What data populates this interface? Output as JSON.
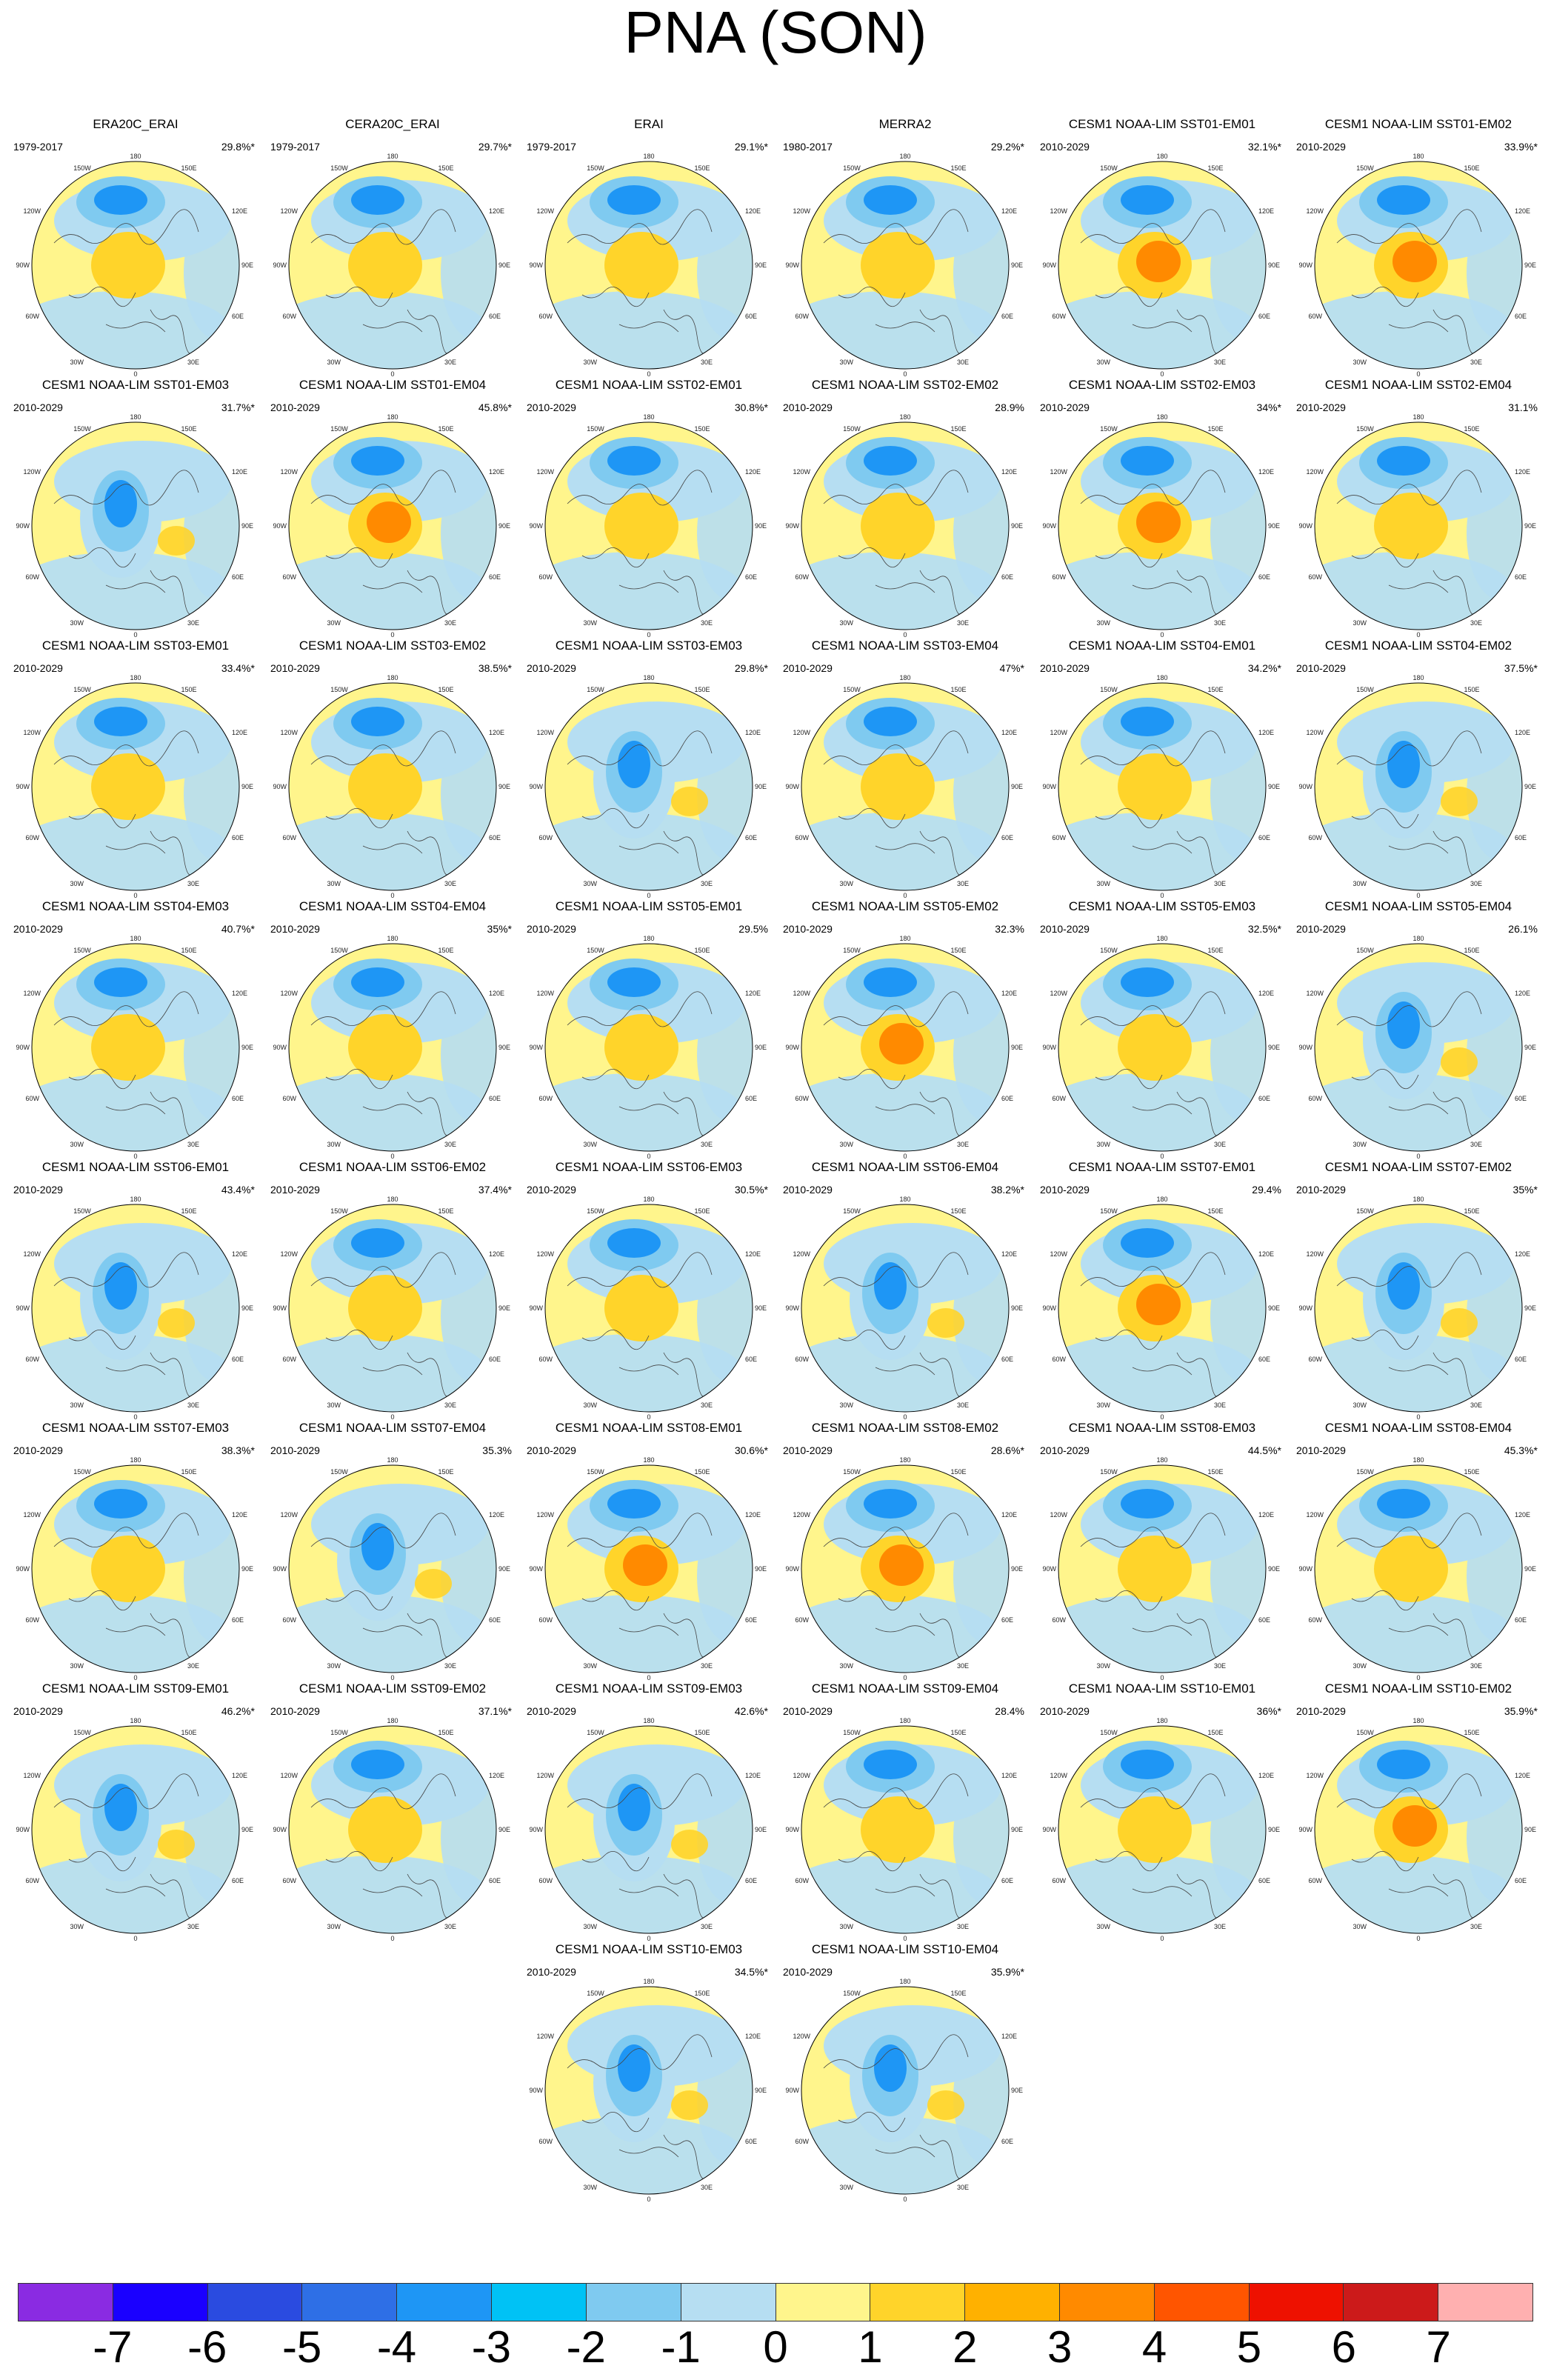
{
  "title": "PNA (SON)",
  "panels": [
    {
      "title": "ERA20C_ERAI",
      "period": "1979-2017",
      "percent": "29.8%*",
      "centre": "warm"
    },
    {
      "title": "CERA20C_ERAI",
      "period": "1979-2017",
      "percent": "29.7%*",
      "centre": "warm"
    },
    {
      "title": "ERAI",
      "period": "1979-2017",
      "percent": "29.1%*",
      "centre": "warm"
    },
    {
      "title": "MERRA2",
      "period": "1980-2017",
      "percent": "29.2%*",
      "centre": "warm"
    },
    {
      "title": "CESM1 NOAA-LIM SST01-EM01",
      "period": "2010-2029",
      "percent": "32.1%*",
      "centre": "hot"
    },
    {
      "title": "CESM1 NOAA-LIM SST01-EM02",
      "period": "2010-2029",
      "percent": "33.9%*",
      "centre": "hot"
    },
    {
      "title": "CESM1 NOAA-LIM SST01-EM03",
      "period": "2010-2029",
      "percent": "31.7%*",
      "centre": "cold"
    },
    {
      "title": "CESM1 NOAA-LIM SST01-EM04",
      "period": "2010-2029",
      "percent": "45.8%*",
      "centre": "hot"
    },
    {
      "title": "CESM1 NOAA-LIM SST02-EM01",
      "period": "2010-2029",
      "percent": "30.8%*",
      "centre": "warm"
    },
    {
      "title": "CESM1 NOAA-LIM SST02-EM02",
      "period": "2010-2029",
      "percent": "28.9%",
      "centre": "warm"
    },
    {
      "title": "CESM1 NOAA-LIM SST02-EM03",
      "period": "2010-2029",
      "percent": "34%*",
      "centre": "hot"
    },
    {
      "title": "CESM1 NOAA-LIM SST02-EM04",
      "period": "2010-2029",
      "percent": "31.1%",
      "centre": "warm"
    },
    {
      "title": "CESM1 NOAA-LIM SST03-EM01",
      "period": "2010-2029",
      "percent": "33.4%*",
      "centre": "warm"
    },
    {
      "title": "CESM1 NOAA-LIM SST03-EM02",
      "period": "2010-2029",
      "percent": "38.5%*",
      "centre": "warm"
    },
    {
      "title": "CESM1 NOAA-LIM SST03-EM03",
      "period": "2010-2029",
      "percent": "29.8%*",
      "centre": "cold"
    },
    {
      "title": "CESM1 NOAA-LIM SST03-EM04",
      "period": "2010-2029",
      "percent": "47%*",
      "centre": "warm"
    },
    {
      "title": "CESM1 NOAA-LIM SST04-EM01",
      "period": "2010-2029",
      "percent": "34.2%*",
      "centre": "warm"
    },
    {
      "title": "CESM1 NOAA-LIM SST04-EM02",
      "period": "2010-2029",
      "percent": "37.5%*",
      "centre": "cold"
    },
    {
      "title": "CESM1 NOAA-LIM SST04-EM03",
      "period": "2010-2029",
      "percent": "40.7%*",
      "centre": "warm"
    },
    {
      "title": "CESM1 NOAA-LIM SST04-EM04",
      "period": "2010-2029",
      "percent": "35%*",
      "centre": "warm"
    },
    {
      "title": "CESM1 NOAA-LIM SST05-EM01",
      "period": "2010-2029",
      "percent": "29.5%",
      "centre": "warm"
    },
    {
      "title": "CESM1 NOAA-LIM SST05-EM02",
      "period": "2010-2029",
      "percent": "32.3%",
      "centre": "hot"
    },
    {
      "title": "CESM1 NOAA-LIM SST05-EM03",
      "period": "2010-2029",
      "percent": "32.5%*",
      "centre": "warm"
    },
    {
      "title": "CESM1 NOAA-LIM SST05-EM04",
      "period": "2010-2029",
      "percent": "26.1%",
      "centre": "cold"
    },
    {
      "title": "CESM1 NOAA-LIM SST06-EM01",
      "period": "2010-2029",
      "percent": "43.4%*",
      "centre": "cold"
    },
    {
      "title": "CESM1 NOAA-LIM SST06-EM02",
      "period": "2010-2029",
      "percent": "37.4%*",
      "centre": "warm"
    },
    {
      "title": "CESM1 NOAA-LIM SST06-EM03",
      "period": "2010-2029",
      "percent": "30.5%*",
      "centre": "warm"
    },
    {
      "title": "CESM1 NOAA-LIM SST06-EM04",
      "period": "2010-2029",
      "percent": "38.2%*",
      "centre": "cold"
    },
    {
      "title": "CESM1 NOAA-LIM SST07-EM01",
      "period": "2010-2029",
      "percent": "29.4%",
      "centre": "hot"
    },
    {
      "title": "CESM1 NOAA-LIM SST07-EM02",
      "period": "2010-2029",
      "percent": "35%*",
      "centre": "cold"
    },
    {
      "title": "CESM1 NOAA-LIM SST07-EM03",
      "period": "2010-2029",
      "percent": "38.3%*",
      "centre": "warm"
    },
    {
      "title": "CESM1 NOAA-LIM SST07-EM04",
      "period": "2010-2029",
      "percent": "35.3%",
      "centre": "cold"
    },
    {
      "title": "CESM1 NOAA-LIM SST08-EM01",
      "period": "2010-2029",
      "percent": "30.6%*",
      "centre": "hot"
    },
    {
      "title": "CESM1 NOAA-LIM SST08-EM02",
      "period": "2010-2029",
      "percent": "28.6%*",
      "centre": "hot"
    },
    {
      "title": "CESM1 NOAA-LIM SST08-EM03",
      "period": "2010-2029",
      "percent": "44.5%*",
      "centre": "warm"
    },
    {
      "title": "CESM1 NOAA-LIM SST08-EM04",
      "period": "2010-2029",
      "percent": "45.3%*",
      "centre": "warm"
    },
    {
      "title": "CESM1 NOAA-LIM SST09-EM01",
      "period": "2010-2029",
      "percent": "46.2%*",
      "centre": "cold"
    },
    {
      "title": "CESM1 NOAA-LIM SST09-EM02",
      "period": "2010-2029",
      "percent": "37.1%*",
      "centre": "warm"
    },
    {
      "title": "CESM1 NOAA-LIM SST09-EM03",
      "period": "2010-2029",
      "percent": "42.6%*",
      "centre": "cold"
    },
    {
      "title": "CESM1 NOAA-LIM SST09-EM04",
      "period": "2010-2029",
      "percent": "28.4%",
      "centre": "warm"
    },
    {
      "title": "CESM1 NOAA-LIM SST10-EM01",
      "period": "2010-2029",
      "percent": "36%*",
      "centre": "warm"
    },
    {
      "title": "CESM1 NOAA-LIM SST10-EM02",
      "period": "2010-2029",
      "percent": "35.9%*",
      "centre": "hot"
    },
    {
      "title": "CESM1 NOAA-LIM SST10-EM03",
      "period": "2010-2029",
      "percent": "34.5%*",
      "centre": "cold"
    },
    {
      "title": "CESM1 NOAA-LIM SST10-EM04",
      "period": "2010-2029",
      "percent": "35.9%*",
      "centre": "cold"
    }
  ],
  "map_labels": {
    "top": "180",
    "bottom": "0",
    "left": "90W",
    "right": "90E",
    "ul1": "150W",
    "ul2": "120W",
    "ur1": "150E",
    "ur2": "120E",
    "ll1": "60W",
    "ll2": "30W",
    "lr1": "60E",
    "lr2": "30E"
  },
  "colorbar": {
    "colors": [
      "#8a2be2",
      "#1a00ff",
      "#2a4be0",
      "#2e6fe6",
      "#1e96f5",
      "#00c2f5",
      "#7fcaf0",
      "#b6def2",
      "#fff58c",
      "#ffd42a",
      "#ffb100",
      "#ff8a00",
      "#ff5500",
      "#ee1100",
      "#cc1a1a",
      "#ffb0b0"
    ],
    "tick_labels": [
      "-7",
      "-6",
      "-5",
      "-4",
      "-3",
      "-2",
      "-1",
      "0",
      "1",
      "2",
      "3",
      "4",
      "5",
      "6",
      "7"
    ]
  },
  "palette": {
    "ocean_background": "#fff58c",
    "light_negative": "#b6def2",
    "mid_negative": "#7fcaf0",
    "strong_negative": "#1e96f5",
    "warm": "#ffd42a",
    "hot": "#ff8a00"
  }
}
